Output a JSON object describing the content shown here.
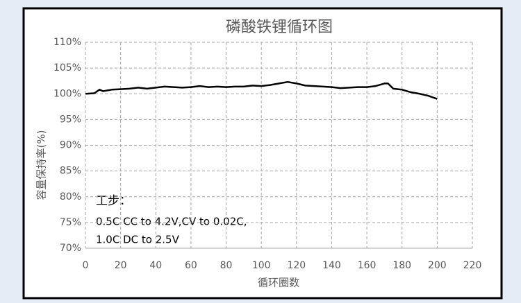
{
  "chart_data": {
    "type": "line",
    "title": "磷酸铁锂循环图",
    "x_label": "循环圈数",
    "y_label": "容量保持率(%)",
    "annotations": [
      "工步：",
      "0.5C CC to 4.2V,CV to 0.02C,",
      "1.0C DC to 2.5V"
    ],
    "x": [
      0,
      5,
      8,
      10,
      15,
      20,
      25,
      30,
      35,
      40,
      45,
      50,
      55,
      60,
      65,
      70,
      75,
      80,
      85,
      90,
      95,
      100,
      105,
      110,
      115,
      120,
      125,
      130,
      135,
      140,
      145,
      150,
      155,
      160,
      165,
      170,
      172,
      175,
      180,
      185,
      190,
      195,
      200
    ],
    "series": [
      {
        "name": "容量保持率",
        "color": "#000000",
        "values": [
          100.0,
          100.1,
          100.8,
          100.5,
          100.8,
          100.9,
          101.0,
          101.2,
          101.0,
          101.2,
          101.4,
          101.3,
          101.2,
          101.3,
          101.5,
          101.3,
          101.4,
          101.3,
          101.4,
          101.4,
          101.6,
          101.5,
          101.7,
          102.0,
          102.3,
          102.0,
          101.6,
          101.5,
          101.4,
          101.3,
          101.1,
          101.2,
          101.3,
          101.3,
          101.5,
          102.0,
          102.0,
          101.0,
          100.8,
          100.3,
          100.0,
          99.6,
          99.0
        ]
      }
    ],
    "xlim": [
      0,
      220
    ],
    "xticks": [
      0,
      20,
      40,
      60,
      80,
      100,
      120,
      140,
      160,
      180,
      200,
      220
    ],
    "ylim": [
      70,
      110
    ],
    "yticks": [
      {
        "value": 70,
        "label": "70%"
      },
      {
        "value": 75,
        "label": "75%"
      },
      {
        "value": 80,
        "label": "80%"
      },
      {
        "value": 85,
        "label": "85%"
      },
      {
        "value": 90,
        "label": "90%"
      },
      {
        "value": 95,
        "label": "95%"
      },
      {
        "value": 100,
        "label": "100%"
      },
      {
        "value": 105,
        "label": "105%"
      },
      {
        "value": 110,
        "label": "110%"
      }
    ],
    "grid": true
  }
}
